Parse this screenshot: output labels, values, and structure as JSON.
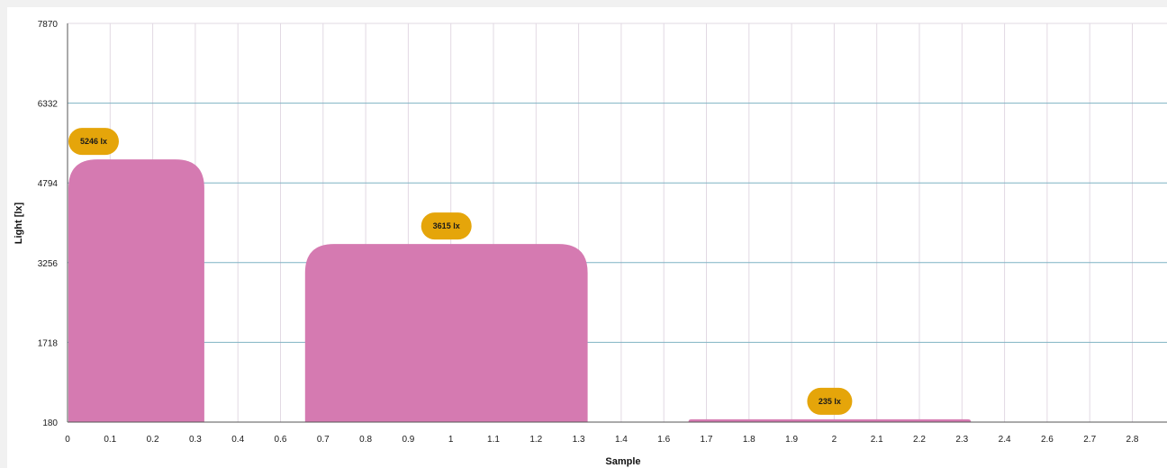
{
  "chart_data": {
    "type": "bar",
    "xlabel": "Sample",
    "ylabel": "Light [lx]",
    "y_ticks": [
      "7870",
      "6332",
      "4794",
      "3256",
      "1718",
      "180"
    ],
    "x_ticks": [
      "0",
      "0.1",
      "0.2",
      "0.3",
      "0.4",
      "0.6",
      "0.7",
      "0.8",
      "0.9",
      "1",
      "1.1",
      "1.2",
      "1.3",
      "1.4",
      "1.6",
      "1.7",
      "1.8",
      "1.9",
      "2",
      "2.1",
      "2.2",
      "2.3",
      "2.4",
      "2.6",
      "2.7",
      "2.8"
    ],
    "ylim": [
      180,
      7870
    ],
    "series": [
      {
        "values": [
          {
            "x_start": 0.0,
            "x_end": 0.3,
            "value": 5246,
            "label": "5246 lx"
          },
          {
            "x_start": 0.7,
            "x_end": 1.3,
            "value": 3615,
            "label": "3615 lx"
          },
          {
            "x_start": 1.7,
            "x_end": 2.3,
            "value": 235,
            "label": "235 lx"
          }
        ]
      }
    ],
    "grid": true,
    "colors": {
      "bar": "#d57ab1",
      "label_bubble": "#e5a50a",
      "h_grid": "#7fb2c3",
      "v_grid": "#e2d9e3",
      "axis": "#555555"
    }
  }
}
